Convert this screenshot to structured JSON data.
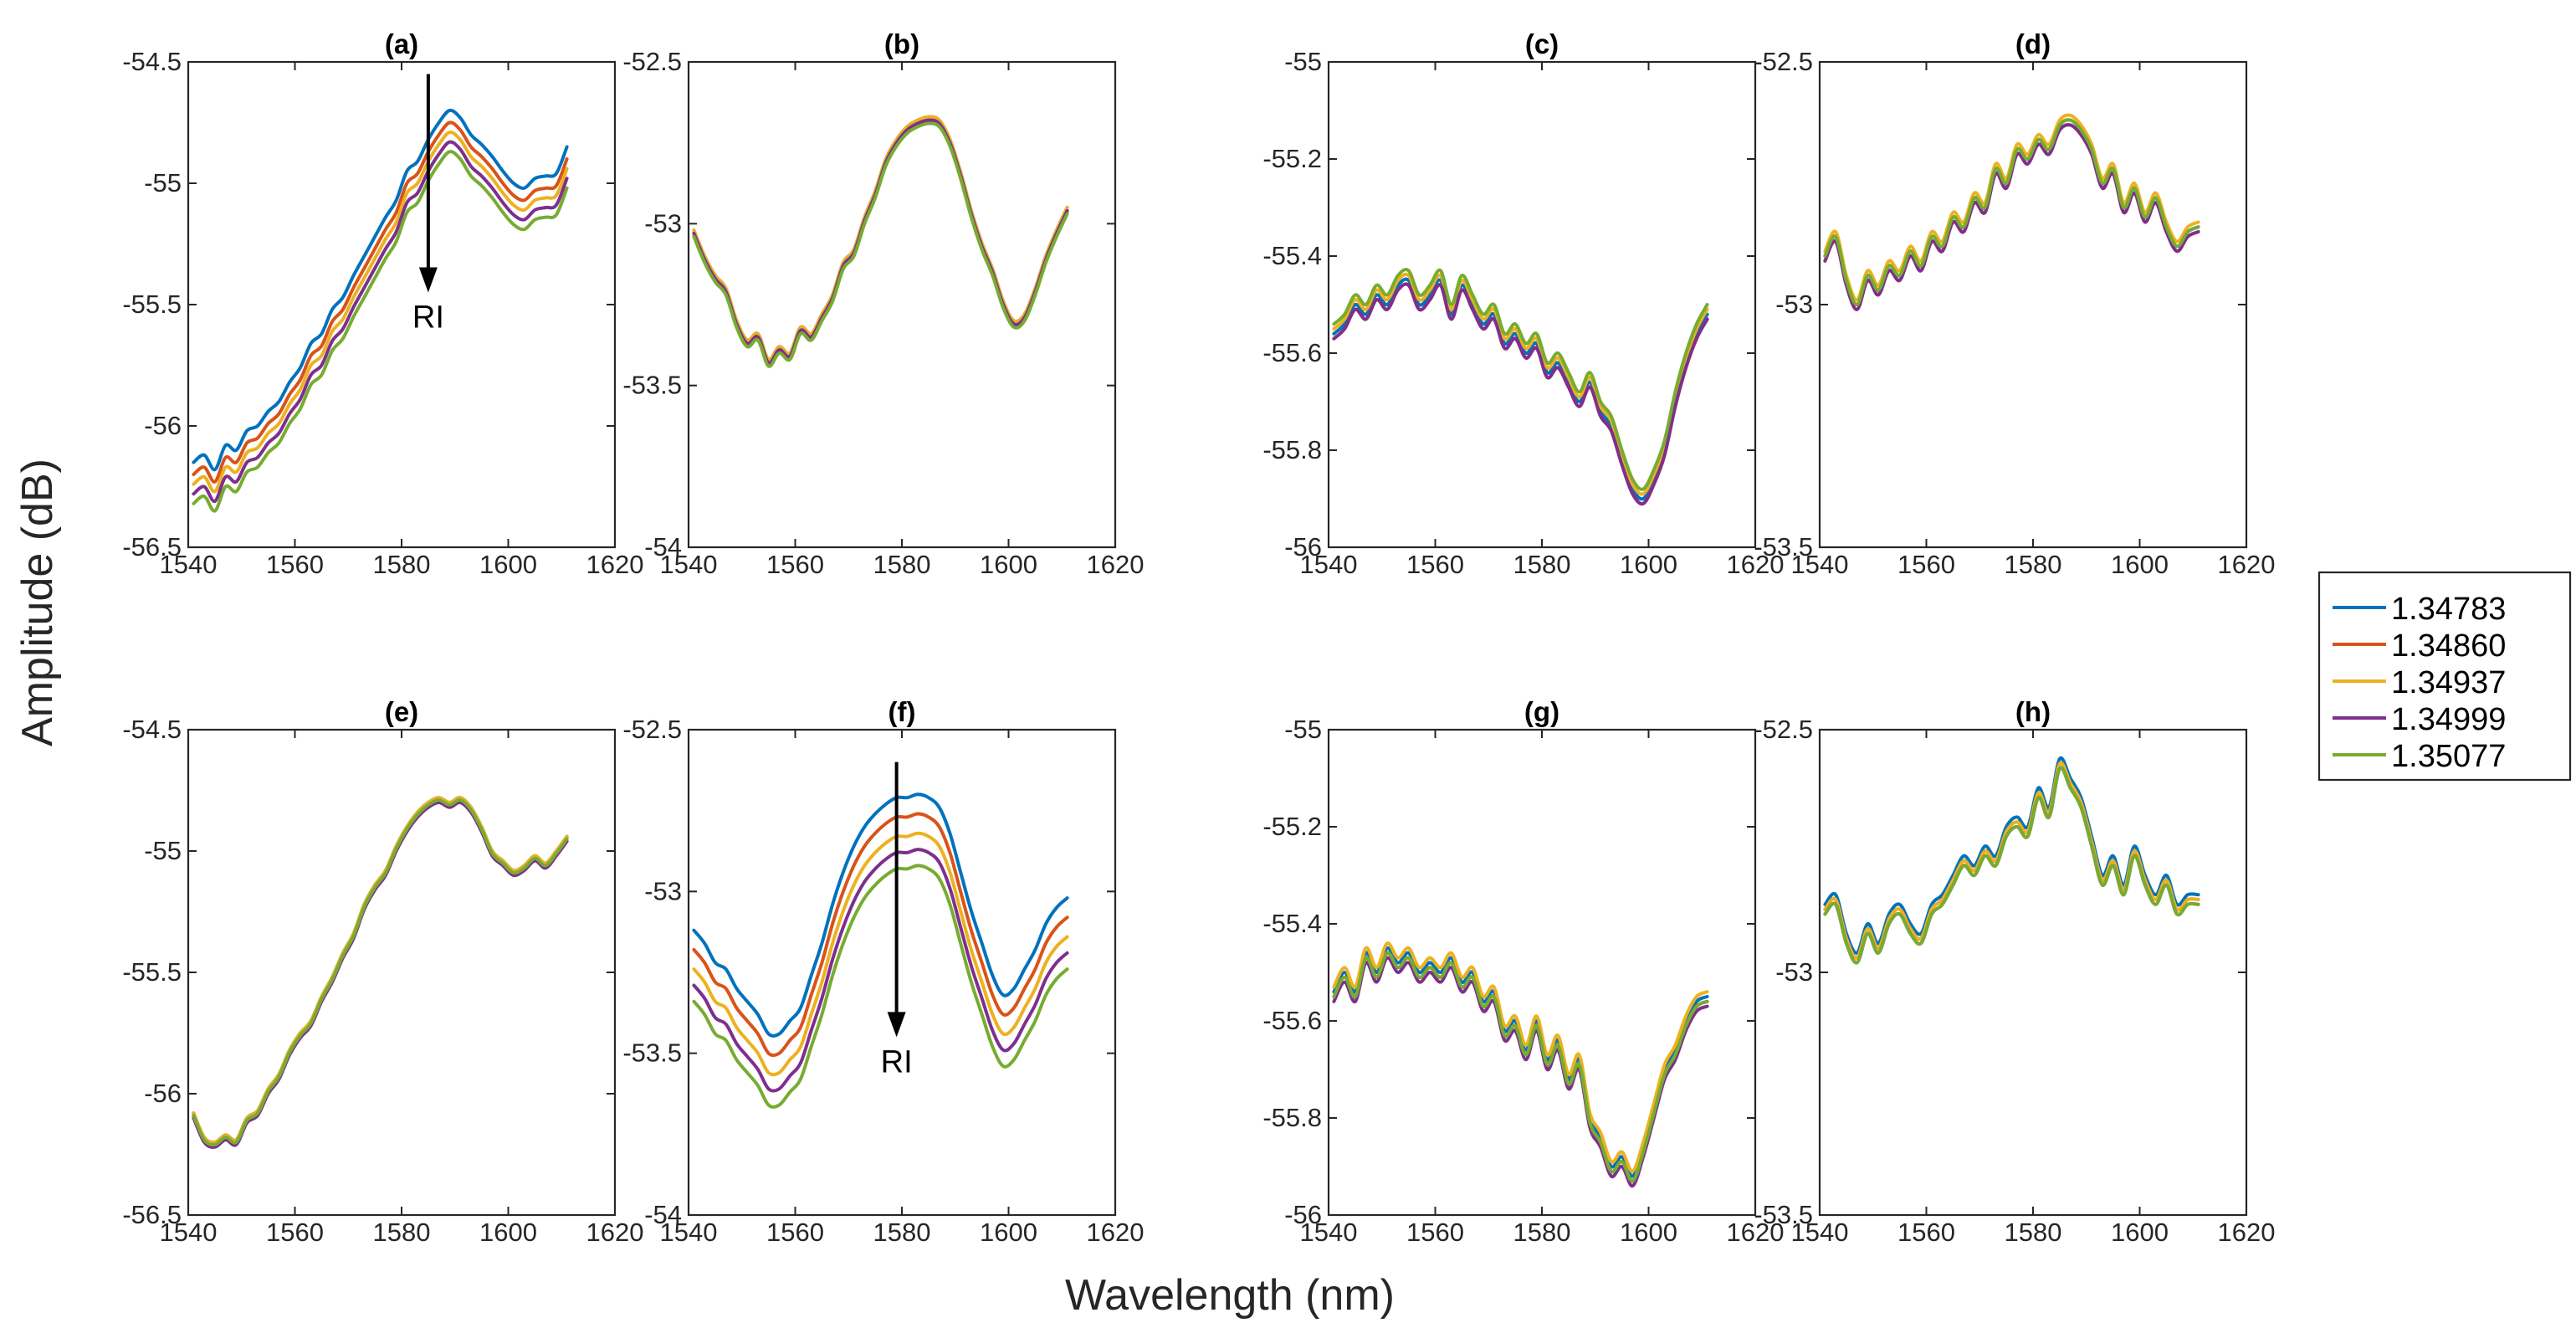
{
  "figure": {
    "xlabel": "Wavelength (nm)",
    "ylabel": "Amplitude (dB)"
  },
  "legend": {
    "entries": [
      {
        "label": "1.34783",
        "color": "#0072BD"
      },
      {
        "label": "1.34860",
        "color": "#D95319"
      },
      {
        "label": "1.34937",
        "color": "#EDB120"
      },
      {
        "label": "1.34999",
        "color": "#7E2F8E"
      },
      {
        "label": "1.35077",
        "color": "#77AC30"
      }
    ]
  },
  "chart_data": [
    {
      "type": "line",
      "title": "(a)",
      "xlim": [
        1540,
        1620
      ],
      "ylim": [
        -56.5,
        -54.5
      ],
      "xticks": [
        1540,
        1560,
        1580,
        1600,
        1620
      ],
      "yticks": [
        -56.5,
        -56,
        -55.5,
        -55,
        -54.5
      ],
      "xticklabels": [
        "1540",
        "1560",
        "1580",
        "1600",
        "1620"
      ],
      "yticklabels": [
        "-56.5",
        "-56",
        "-55.5",
        "-55",
        "-54.5"
      ],
      "x": [
        1541,
        1543,
        1545,
        1547,
        1549,
        1551,
        1553,
        1555,
        1557,
        1559,
        1561,
        1563,
        1565,
        1567,
        1569,
        1571,
        1573,
        1575,
        1577,
        1579,
        1581,
        1583,
        1585,
        1587,
        1589,
        1591,
        1593,
        1595,
        1597,
        1599,
        1601,
        1603,
        1605,
        1607,
        1609,
        1611
      ],
      "base": [
        -56.15,
        -56.12,
        -56.18,
        -56.08,
        -56.1,
        -56.02,
        -56.0,
        -55.94,
        -55.9,
        -55.82,
        -55.76,
        -55.66,
        -55.62,
        -55.52,
        -55.47,
        -55.38,
        -55.3,
        -55.22,
        -55.14,
        -55.07,
        -54.95,
        -54.91,
        -54.82,
        -54.75,
        -54.7,
        -54.73,
        -54.8,
        -54.84,
        -54.89,
        -54.95,
        -55.0,
        -55.02,
        -54.98,
        -54.97,
        -54.96,
        -54.85
      ],
      "offsets": [
        0.0,
        0.05,
        0.09,
        0.13,
        0.17
      ],
      "annotation": {
        "text": "RI",
        "x": 1585,
        "y_start": -54.55,
        "y_end": -55.45
      }
    },
    {
      "type": "line",
      "title": "(b)",
      "xlim": [
        1540,
        1620
      ],
      "ylim": [
        -54,
        -52.5
      ],
      "xticks": [
        1540,
        1560,
        1580,
        1600,
        1620
      ],
      "yticks": [
        -54,
        -53.5,
        -53,
        -52.5
      ],
      "xticklabels": [
        "1540",
        "1560",
        "1580",
        "1600",
        "1620"
      ],
      "yticklabels": [
        "-54",
        "-53.5",
        "-53",
        "-52.5"
      ],
      "x": [
        1541,
        1543,
        1545,
        1547,
        1549,
        1551,
        1553,
        1555,
        1557,
        1559,
        1561,
        1563,
        1565,
        1567,
        1569,
        1571,
        1573,
        1575,
        1577,
        1579,
        1581,
        1583,
        1585,
        1587,
        1589,
        1591,
        1593,
        1595,
        1597,
        1599,
        1601,
        1603,
        1605,
        1607,
        1609,
        1611
      ],
      "base": [
        -53.02,
        -53.1,
        -53.16,
        -53.2,
        -53.3,
        -53.36,
        -53.34,
        -53.42,
        -53.38,
        -53.4,
        -53.32,
        -53.34,
        -53.28,
        -53.22,
        -53.12,
        -53.08,
        -52.98,
        -52.9,
        -52.8,
        -52.74,
        -52.7,
        -52.68,
        -52.67,
        -52.68,
        -52.74,
        -52.84,
        -52.96,
        -53.06,
        -53.14,
        -53.24,
        -53.3,
        -53.28,
        -53.2,
        -53.1,
        -53.02,
        -52.95
      ],
      "offsets": [
        0.0,
        0.01,
        0.0,
        0.01,
        0.02
      ]
    },
    {
      "type": "line",
      "title": "(c)",
      "xlim": [
        1540,
        1620
      ],
      "ylim": [
        -56,
        -55
      ],
      "xticks": [
        1540,
        1560,
        1580,
        1600,
        1620
      ],
      "yticks": [
        -56,
        -55.8,
        -55.6,
        -55.4,
        -55.2,
        -55
      ],
      "xticklabels": [
        "1540",
        "1560",
        "1580",
        "1600",
        "1620"
      ],
      "yticklabels": [
        "-56",
        "-55.8",
        "-55.6",
        "-55.4",
        "-55.2",
        "-55"
      ],
      "x": [
        1541,
        1543,
        1545,
        1547,
        1549,
        1551,
        1553,
        1555,
        1557,
        1559,
        1561,
        1563,
        1565,
        1567,
        1569,
        1571,
        1573,
        1575,
        1577,
        1579,
        1581,
        1583,
        1585,
        1587,
        1589,
        1591,
        1593,
        1595,
        1597,
        1599,
        1601,
        1603,
        1605,
        1607,
        1609,
        1611
      ],
      "base": [
        -55.56,
        -55.54,
        -55.5,
        -55.52,
        -55.48,
        -55.5,
        -55.46,
        -55.45,
        -55.5,
        -55.48,
        -55.45,
        -55.52,
        -55.46,
        -55.5,
        -55.54,
        -55.52,
        -55.58,
        -55.56,
        -55.6,
        -55.58,
        -55.64,
        -55.62,
        -55.66,
        -55.7,
        -55.66,
        -55.72,
        -55.75,
        -55.82,
        -55.88,
        -55.9,
        -55.86,
        -55.8,
        -55.7,
        -55.62,
        -55.56,
        -55.52
      ],
      "offsets": [
        0.0,
        0.01,
        -0.01,
        0.01,
        -0.02
      ]
    },
    {
      "type": "line",
      "title": "(d)",
      "xlim": [
        1540,
        1620
      ],
      "ylim": [
        -53.5,
        -52.5
      ],
      "xticks": [
        1540,
        1560,
        1580,
        1600,
        1620
      ],
      "yticks": [
        -53.5,
        -53,
        -52.5
      ],
      "xticklabels": [
        "1540",
        "1560",
        "1580",
        "1600",
        "1620"
      ],
      "yticklabels": [
        "-53.5",
        "-53",
        "-52.5"
      ],
      "x": [
        1541,
        1543,
        1545,
        1547,
        1549,
        1551,
        1553,
        1555,
        1557,
        1559,
        1561,
        1563,
        1565,
        1567,
        1569,
        1571,
        1573,
        1575,
        1577,
        1579,
        1581,
        1583,
        1585,
        1587,
        1589,
        1591,
        1593,
        1595,
        1597,
        1599,
        1601,
        1603,
        1605,
        1607,
        1609,
        1611
      ],
      "base": [
        -52.9,
        -52.86,
        -52.95,
        -53.0,
        -52.94,
        -52.97,
        -52.92,
        -52.94,
        -52.89,
        -52.92,
        -52.86,
        -52.88,
        -52.82,
        -52.84,
        -52.78,
        -52.8,
        -52.72,
        -52.75,
        -52.68,
        -52.7,
        -52.66,
        -52.68,
        -52.63,
        -52.62,
        -52.64,
        -52.68,
        -52.75,
        -52.72,
        -52.8,
        -52.76,
        -52.82,
        -52.78,
        -52.84,
        -52.88,
        -52.85,
        -52.84
      ],
      "offsets": [
        0.0,
        0.01,
        -0.01,
        0.01,
        0.0
      ]
    },
    {
      "type": "line",
      "title": "(e)",
      "xlim": [
        1540,
        1620
      ],
      "ylim": [
        -56.5,
        -54.5
      ],
      "xticks": [
        1540,
        1560,
        1580,
        1600,
        1620
      ],
      "yticks": [
        -56.5,
        -56,
        -55.5,
        -55,
        -54.5
      ],
      "xticklabels": [
        "1540",
        "1560",
        "1580",
        "1600",
        "1620"
      ],
      "yticklabels": [
        "-56.5",
        "-56",
        "-55.5",
        "-55",
        "-54.5"
      ],
      "x": [
        1541,
        1543,
        1545,
        1547,
        1549,
        1551,
        1553,
        1555,
        1557,
        1559,
        1561,
        1563,
        1565,
        1567,
        1569,
        1571,
        1573,
        1575,
        1577,
        1579,
        1581,
        1583,
        1585,
        1587,
        1589,
        1591,
        1593,
        1595,
        1597,
        1599,
        1601,
        1603,
        1605,
        1607,
        1609,
        1611
      ],
      "base": [
        -56.08,
        -56.18,
        -56.2,
        -56.17,
        -56.19,
        -56.1,
        -56.07,
        -55.98,
        -55.92,
        -55.82,
        -55.75,
        -55.7,
        -55.6,
        -55.52,
        -55.42,
        -55.34,
        -55.22,
        -55.14,
        -55.08,
        -54.98,
        -54.9,
        -54.84,
        -54.8,
        -54.78,
        -54.8,
        -54.78,
        -54.82,
        -54.9,
        -55.0,
        -55.04,
        -55.08,
        -55.06,
        -55.02,
        -55.05,
        -55.0,
        -54.94
      ],
      "offsets": [
        0.0,
        0.01,
        0.0,
        0.02,
        0.01
      ]
    },
    {
      "type": "line",
      "title": "(f)",
      "xlim": [
        1540,
        1620
      ],
      "ylim": [
        -54,
        -52.5
      ],
      "xticks": [
        1540,
        1560,
        1580,
        1600,
        1620
      ],
      "yticks": [
        -54,
        -53.5,
        -53,
        -52.5
      ],
      "xticklabels": [
        "1540",
        "1560",
        "1580",
        "1600",
        "1620"
      ],
      "yticklabels": [
        "-54",
        "-53.5",
        "-53",
        "-52.5"
      ],
      "x": [
        1541,
        1543,
        1545,
        1547,
        1549,
        1551,
        1553,
        1555,
        1557,
        1559,
        1561,
        1563,
        1565,
        1567,
        1569,
        1571,
        1573,
        1575,
        1577,
        1579,
        1581,
        1583,
        1585,
        1587,
        1589,
        1591,
        1593,
        1595,
        1597,
        1599,
        1601,
        1603,
        1605,
        1607,
        1609,
        1611
      ],
      "base": [
        -53.12,
        -53.16,
        -53.22,
        -53.24,
        -53.3,
        -53.34,
        -53.38,
        -53.44,
        -53.44,
        -53.4,
        -53.36,
        -53.26,
        -53.16,
        -53.04,
        -52.94,
        -52.86,
        -52.8,
        -52.76,
        -52.73,
        -52.71,
        -52.71,
        -52.7,
        -52.71,
        -52.74,
        -52.82,
        -52.94,
        -53.06,
        -53.16,
        -53.26,
        -53.32,
        -53.3,
        -53.24,
        -53.18,
        -53.1,
        -53.05,
        -53.02
      ],
      "offsets": [
        0.0,
        0.06,
        0.12,
        0.17,
        0.22
      ],
      "annotation": {
        "text": "RI",
        "x": 1579,
        "y_start": -52.6,
        "y_end": -53.45
      }
    },
    {
      "type": "line",
      "title": "(g)",
      "xlim": [
        1540,
        1620
      ],
      "ylim": [
        -56,
        -55
      ],
      "xticks": [
        1540,
        1560,
        1580,
        1600,
        1620
      ],
      "yticks": [
        -56,
        -55.8,
        -55.6,
        -55.4,
        -55.2,
        -55
      ],
      "xticklabels": [
        "1540",
        "1560",
        "1580",
        "1600",
        "1620"
      ],
      "yticklabels": [
        "-56",
        "-55.8",
        "-55.6",
        "-55.4",
        "-55.2",
        "-55"
      ],
      "x": [
        1541,
        1543,
        1545,
        1547,
        1549,
        1551,
        1553,
        1555,
        1557,
        1559,
        1561,
        1563,
        1565,
        1567,
        1569,
        1571,
        1573,
        1575,
        1577,
        1579,
        1581,
        1583,
        1585,
        1587,
        1589,
        1591,
        1593,
        1595,
        1597,
        1599,
        1601,
        1603,
        1605,
        1607,
        1609,
        1611
      ],
      "base": [
        -55.54,
        -55.5,
        -55.54,
        -55.46,
        -55.5,
        -55.45,
        -55.48,
        -55.46,
        -55.5,
        -55.48,
        -55.5,
        -55.47,
        -55.52,
        -55.5,
        -55.56,
        -55.54,
        -55.62,
        -55.6,
        -55.66,
        -55.6,
        -55.68,
        -55.64,
        -55.72,
        -55.68,
        -55.8,
        -55.84,
        -55.9,
        -55.88,
        -55.92,
        -55.86,
        -55.78,
        -55.7,
        -55.66,
        -55.6,
        -55.56,
        -55.55
      ],
      "offsets": [
        0.0,
        0.01,
        -0.01,
        0.02,
        0.01
      ]
    },
    {
      "type": "line",
      "title": "(h)",
      "xlim": [
        1540,
        1620
      ],
      "ylim": [
        -53.5,
        -52.5
      ],
      "xticks": [
        1540,
        1560,
        1580,
        1600,
        1620
      ],
      "yticks": [
        -53.5,
        -53,
        -52.5
      ],
      "xticklabels": [
        "1540",
        "1560",
        "1580",
        "1600",
        "1620"
      ],
      "yticklabels": [
        "-53.5",
        "-53",
        "-52.5"
      ],
      "x": [
        1541,
        1543,
        1545,
        1547,
        1549,
        1551,
        1553,
        1555,
        1557,
        1559,
        1561,
        1563,
        1565,
        1567,
        1569,
        1571,
        1573,
        1575,
        1577,
        1579,
        1581,
        1583,
        1585,
        1587,
        1589,
        1591,
        1593,
        1595,
        1597,
        1599,
        1601,
        1603,
        1605,
        1607,
        1609,
        1611
      ],
      "base": [
        -52.86,
        -52.84,
        -52.92,
        -52.96,
        -52.9,
        -52.94,
        -52.88,
        -52.86,
        -52.9,
        -52.92,
        -52.86,
        -52.84,
        -52.8,
        -52.76,
        -52.78,
        -52.74,
        -52.76,
        -52.7,
        -52.68,
        -52.7,
        -52.62,
        -52.66,
        -52.56,
        -52.6,
        -52.64,
        -52.72,
        -52.8,
        -52.76,
        -52.82,
        -52.74,
        -52.8,
        -52.84,
        -52.8,
        -52.86,
        -52.84,
        -52.84
      ],
      "offsets": [
        0.0,
        0.01,
        0.01,
        0.02,
        0.02
      ]
    }
  ]
}
